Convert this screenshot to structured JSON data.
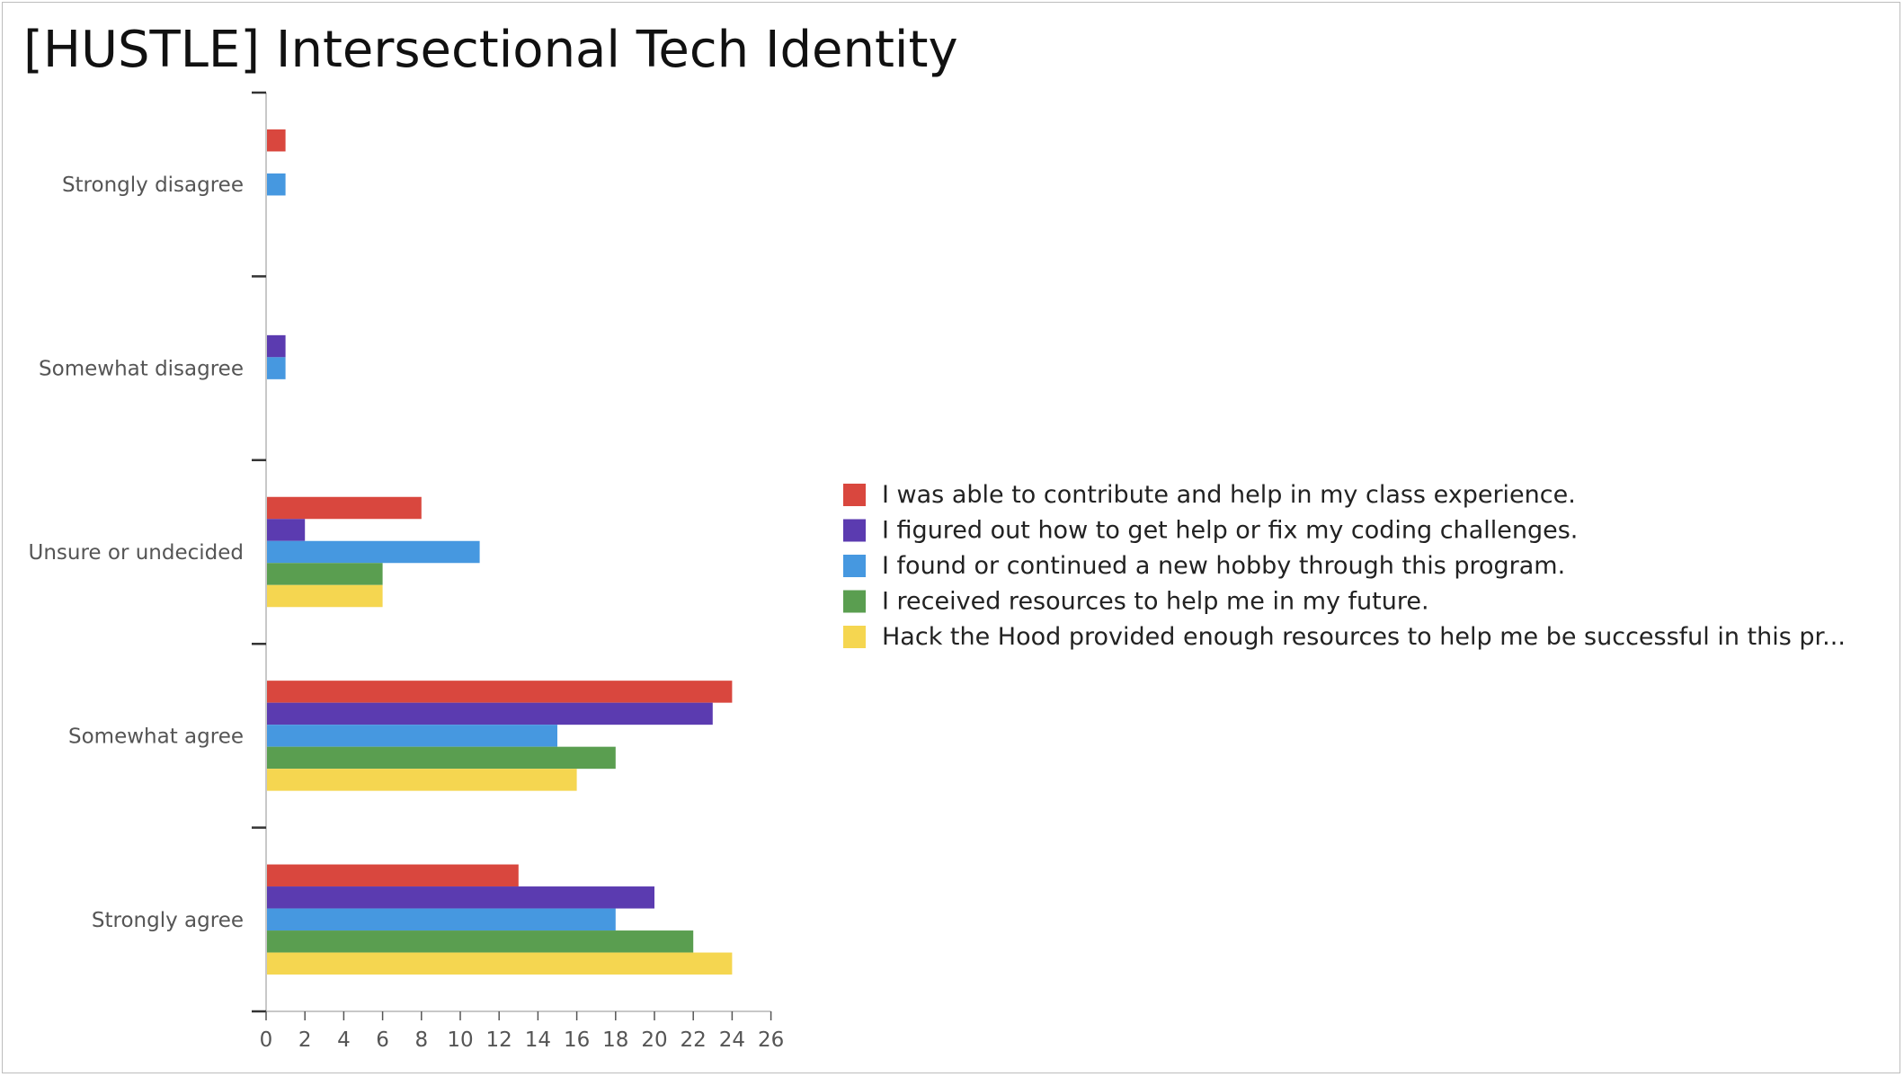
{
  "slide": {
    "title": "[HUSTLE] Intersectional Tech Identity"
  },
  "chart_data": {
    "type": "bar",
    "orientation": "horizontal",
    "title": "",
    "xlabel": "",
    "ylabel": "",
    "xlim": [
      0,
      26
    ],
    "x_ticks": [
      0,
      2,
      4,
      6,
      8,
      10,
      12,
      14,
      16,
      18,
      20,
      22,
      24,
      26
    ],
    "grid": false,
    "legend_position": "right",
    "categories": [
      "Strongly disagree",
      "Somewhat disagree",
      "Unsure or undecided",
      "Somewhat agree",
      "Strongly agree"
    ],
    "series": [
      {
        "name": "I was able to contribute and help in my class experience.",
        "color": "#d9473e",
        "values": [
          1,
          0,
          8,
          24,
          13
        ]
      },
      {
        "name": "I figured out how to get help or fix my coding challenges.",
        "color": "#5b3bb0",
        "values": [
          0,
          1,
          2,
          23,
          20
        ]
      },
      {
        "name": "I found or continued a new hobby through this program.",
        "color": "#4698e0",
        "values": [
          1,
          1,
          11,
          15,
          18
        ]
      },
      {
        "name": "I received resources to help me in my future.",
        "color": "#5a9e50",
        "values": [
          0,
          0,
          6,
          18,
          22
        ]
      },
      {
        "name": "Hack the Hood provided enough resources to help me be successful in this pr...",
        "color": "#f5d650",
        "values": [
          0,
          0,
          6,
          16,
          24
        ]
      }
    ]
  }
}
